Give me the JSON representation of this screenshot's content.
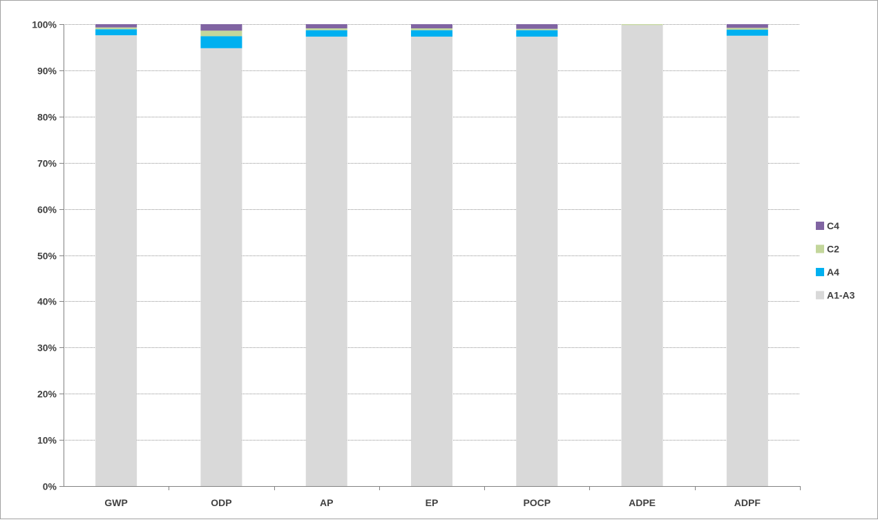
{
  "chart_data": {
    "type": "bar",
    "stacked": true,
    "normalized_percent": true,
    "categories": [
      "GWP",
      "ODP",
      "AP",
      "EP",
      "POCP",
      "ADPE",
      "ADPF"
    ],
    "series": [
      {
        "name": "A1-A3",
        "color": "#d9d9d9",
        "values": [
          97.6,
          94.8,
          97.3,
          97.3,
          97.3,
          99.8,
          97.5
        ]
      },
      {
        "name": "A4",
        "color": "#00b0f0",
        "values": [
          1.3,
          2.6,
          1.4,
          1.4,
          1.4,
          0.0,
          1.3
        ]
      },
      {
        "name": "C2",
        "color": "#c3d69b",
        "values": [
          0.4,
          1.2,
          0.4,
          0.4,
          0.3,
          0.2,
          0.4
        ]
      },
      {
        "name": "C4",
        "color": "#8064a2",
        "values": [
          0.7,
          1.4,
          0.9,
          0.9,
          1.0,
          0.0,
          0.8
        ]
      }
    ],
    "yticks": [
      "0%",
      "10%",
      "20%",
      "30%",
      "40%",
      "50%",
      "60%",
      "70%",
      "80%",
      "90%",
      "100%"
    ],
    "ylim": [
      0,
      100
    ],
    "grid": true,
    "legend": {
      "placement": "right",
      "order": [
        "C4",
        "C2",
        "A4",
        "A1-A3"
      ]
    },
    "axis_color": "#808080",
    "grid_color": "#909090"
  }
}
